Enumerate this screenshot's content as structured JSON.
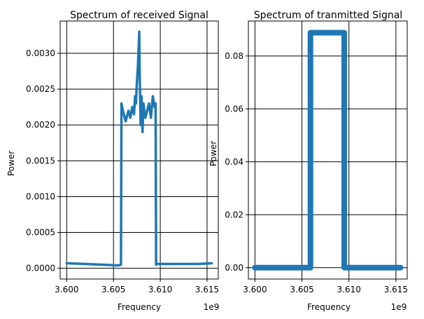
{
  "chart_data": [
    {
      "type": "line",
      "title": "Spectrum of received Signal",
      "xlabel": "Frequency",
      "ylabel": "Power",
      "x_offset_label": "1e9",
      "xlim": [
        3.5993,
        3.6162
      ],
      "ylim": [
        -0.00015,
        0.00345
      ],
      "x_ticks": [
        3.6,
        3.605,
        3.61,
        3.615
      ],
      "x_tick_labels": [
        "3.600",
        "3.605",
        "3.610",
        "3.615"
      ],
      "y_ticks": [
        0.0,
        0.0005,
        0.001,
        0.0015,
        0.002,
        0.0025,
        0.003
      ],
      "y_tick_labels": [
        "0.0000",
        "0.0005",
        "0.0010",
        "0.0015",
        "0.0020",
        "0.0025",
        "0.0030"
      ],
      "grid": true,
      "series": [
        {
          "x": [
            3.6,
            3.602,
            3.604,
            3.6055,
            3.6058,
            3.60585,
            3.606,
            3.6063,
            3.6066,
            3.6068,
            3.607,
            3.6072,
            3.6073,
            3.6074,
            3.6075,
            3.6076,
            3.6077,
            3.60775,
            3.6078,
            3.6079,
            3.608,
            3.6081,
            3.6082,
            3.6084,
            3.6086,
            3.6088,
            3.609,
            3.6092,
            3.6094,
            3.6095,
            3.60955,
            3.6097,
            3.612,
            3.614,
            3.6155
          ],
          "y": [
            7e-05,
            6e-05,
            5e-05,
            4e-05,
            5e-05,
            0.0023,
            0.0022,
            0.00205,
            0.0022,
            0.0021,
            0.00225,
            0.00215,
            0.0024,
            0.0023,
            0.0026,
            0.0028,
            0.0031,
            0.0033,
            0.0027,
            0.002,
            0.0024,
            0.0019,
            0.0023,
            0.0021,
            0.0022,
            0.0023,
            0.0021,
            0.0024,
            0.00225,
            0.0023,
            5e-05,
            6e-05,
            6e-05,
            6e-05,
            7e-05
          ]
        }
      ]
    },
    {
      "type": "line",
      "title": "Spectrum of tranmitted Signal",
      "xlabel": "Frequency",
      "ylabel": "Power",
      "x_offset_label": "1e9",
      "xlim": [
        3.5993,
        3.6162
      ],
      "ylim": [
        -0.0043,
        0.0932
      ],
      "x_ticks": [
        3.6,
        3.605,
        3.61,
        3.615
      ],
      "x_tick_labels": [
        "3.600",
        "3.605",
        "3.610",
        "3.615"
      ],
      "y_ticks": [
        0.0,
        0.02,
        0.04,
        0.06,
        0.08
      ],
      "y_tick_labels": [
        "0.00",
        "0.02",
        "0.04",
        "0.06",
        "0.08"
      ],
      "grid": true,
      "series": [
        {
          "x": [
            3.6,
            3.6059,
            3.6059,
            3.6095,
            3.6095,
            3.6155
          ],
          "y": [
            0.0,
            0.0,
            0.0888,
            0.0888,
            0.0,
            0.0
          ]
        }
      ]
    }
  ],
  "colors": {
    "line": "#1f77b4",
    "grid": "#000000",
    "axes": "#000000"
  }
}
